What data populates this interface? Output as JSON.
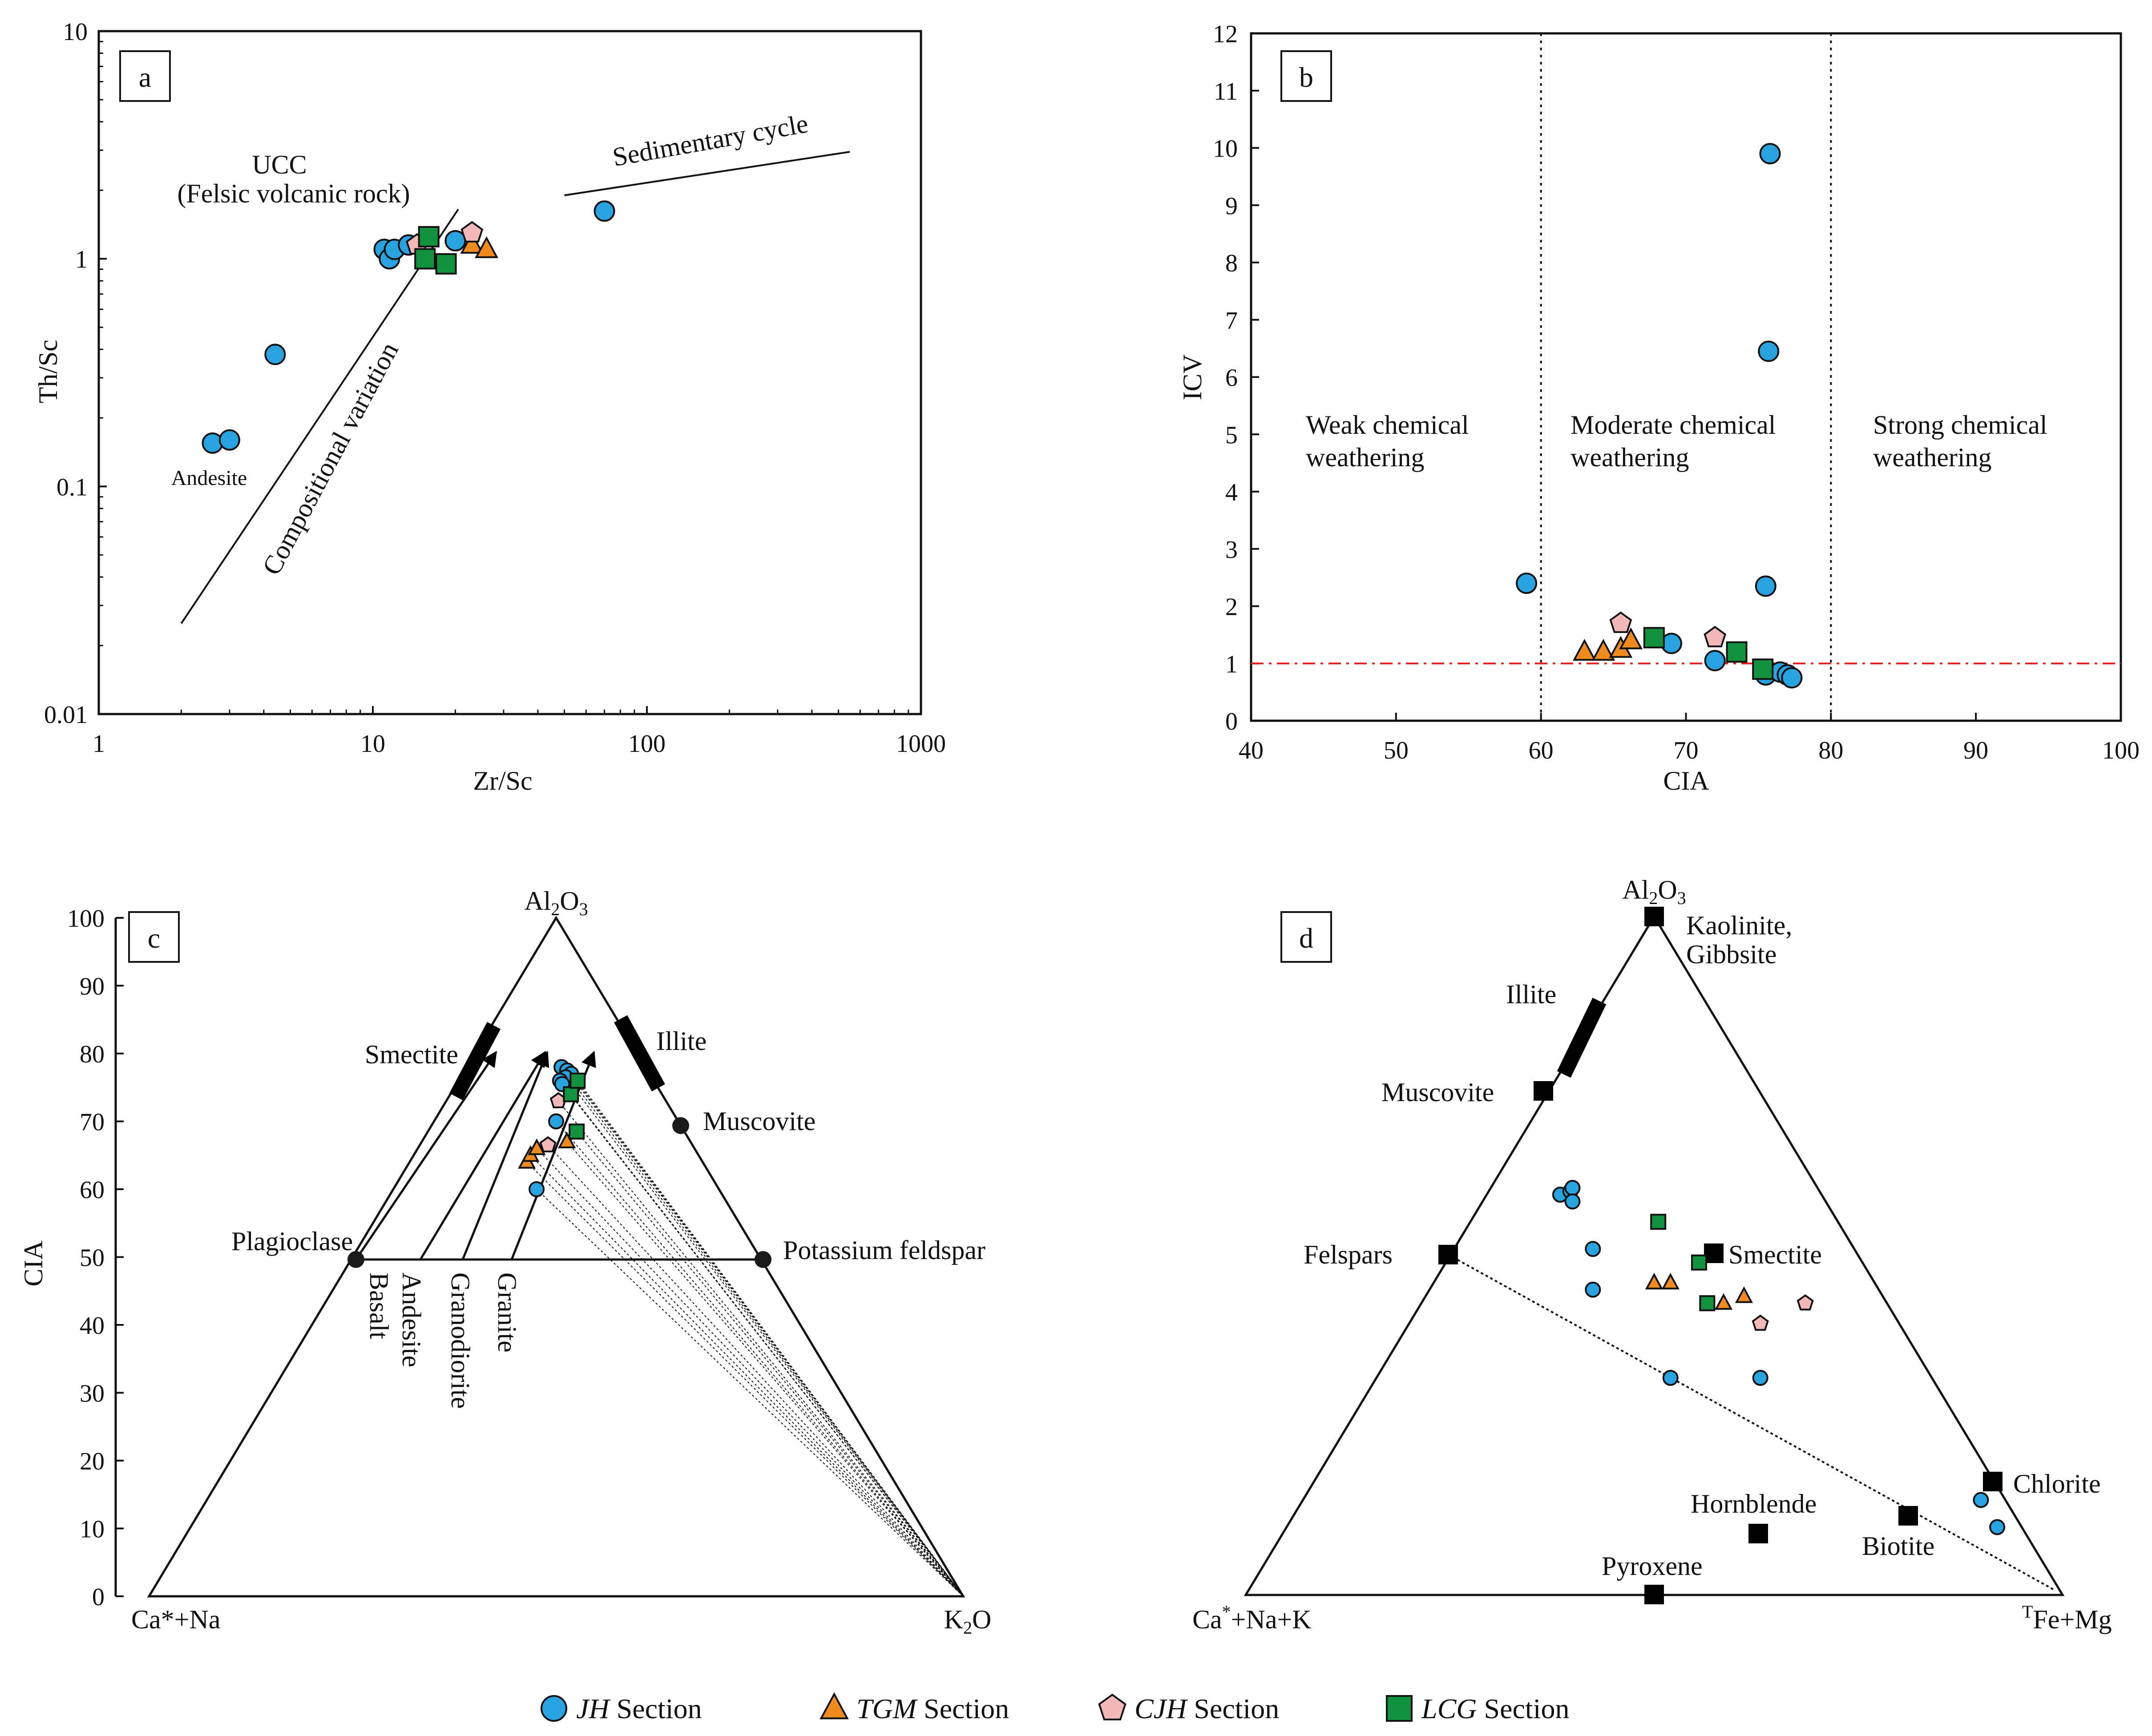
{
  "figure": {
    "legend": [
      {
        "italic": "JH",
        "rest": " Section",
        "marker": "circle",
        "color": "#29a3e0"
      },
      {
        "italic": "TGM",
        "rest": " Section",
        "marker": "triangle",
        "color": "#ef8b1e"
      },
      {
        "italic": "CJH",
        "rest": " Section",
        "marker": "pentagon",
        "color": "#f3b8b8"
      },
      {
        "italic": "LCG",
        "rest": " Section",
        "marker": "square",
        "color": "#12913f"
      }
    ]
  },
  "chart_data": [
    {
      "panel": "a",
      "type": "scatter",
      "xscale": "log",
      "yscale": "log",
      "xlim": [
        1,
        1000
      ],
      "ylim": [
        0.01,
        10
      ],
      "xlabel": "Zr/Sc",
      "ylabel": "Th/Sc",
      "xticks": [
        "1",
        "10",
        "100",
        "1000"
      ],
      "yticks": [
        "0.01",
        "0.1",
        "1",
        "10"
      ],
      "annotations": {
        "ucc_line1": "UCC",
        "ucc_line2": "(Felsic volcanic rock)",
        "sedimentary": "Sedimentary cycle",
        "compositional": "Compositional variation",
        "andesite": "Andesite"
      },
      "lines": [
        {
          "name": "compositional-variation",
          "x": [
            2.0,
            20.5
          ],
          "y": [
            0.025,
            1.65
          ]
        },
        {
          "name": "sedimentary-cycle",
          "x": [
            50,
            550
          ],
          "y": [
            1.9,
            2.95
          ]
        }
      ],
      "series": [
        {
          "name": "JH",
          "x": [
            2.6,
            3.0,
            4.4,
            11,
            11.5,
            12,
            13.5,
            20,
            70
          ],
          "y": [
            0.155,
            0.16,
            0.38,
            1.1,
            1.0,
            1.1,
            1.15,
            1.2,
            1.62
          ]
        },
        {
          "name": "TGM",
          "x": [
            23,
            26
          ],
          "y": [
            1.15,
            1.1
          ]
        },
        {
          "name": "CJH",
          "x": [
            14.5,
            23
          ],
          "y": [
            1.15,
            1.3
          ]
        },
        {
          "name": "LCG",
          "x": [
            15.5,
            16,
            18.5
          ],
          "y": [
            1.0,
            1.25,
            0.95
          ]
        }
      ]
    },
    {
      "panel": "b",
      "type": "scatter",
      "xlim": [
        40,
        100
      ],
      "ylim": [
        0,
        12
      ],
      "xlabel": "CIA",
      "ylabel": "ICV",
      "xticks": [
        "40",
        "50",
        "60",
        "70",
        "80",
        "90",
        "100"
      ],
      "yticks": [
        "0",
        "1",
        "2",
        "3",
        "4",
        "5",
        "6",
        "7",
        "8",
        "9",
        "10",
        "11",
        "12"
      ],
      "vlines": [
        60,
        80
      ],
      "hline": 1,
      "zones": {
        "weak1": "Weak chemical",
        "weak2": "weathering",
        "moderate1": "Moderate chemical",
        "moderate2": "weathering",
        "strong1": "Strong chemical",
        "strong2": "weathering"
      },
      "series": [
        {
          "name": "JH",
          "x": [
            59,
            69,
            72,
            75.5,
            75.7,
            75.8,
            75.5,
            76.5,
            77,
            77.3
          ],
          "y": [
            2.4,
            1.35,
            1.05,
            2.35,
            6.45,
            9.9,
            0.8,
            0.85,
            0.8,
            0.75
          ]
        },
        {
          "name": "TGM",
          "x": [
            63,
            64.3,
            65.5,
            66.2
          ],
          "y": [
            1.2,
            1.2,
            1.25,
            1.4
          ]
        },
        {
          "name": "CJH",
          "x": [
            65.5,
            72
          ],
          "y": [
            1.7,
            1.45
          ]
        },
        {
          "name": "LCG",
          "x": [
            67.8,
            73.5,
            75.3
          ],
          "y": [
            1.45,
            1.2,
            0.9
          ]
        }
      ]
    },
    {
      "panel": "c",
      "type": "ternary",
      "yaxis_label": "CIA",
      "ylim": [
        0,
        100
      ],
      "yticks": [
        "0",
        "10",
        "20",
        "30",
        "40",
        "50",
        "60",
        "70",
        "80",
        "90",
        "100"
      ],
      "apex_top": {
        "a": "Al",
        "b": "2",
        "c": "O",
        "d": "3"
      },
      "apex_left": "Ca*+Na",
      "apex_right": {
        "a": "K",
        "b": "2",
        "c": "O"
      },
      "minerals": {
        "plagioclase": "Plagioclase",
        "k_feldspar": "Potassium feldspar",
        "muscovite": "Muscovite",
        "smectite": "Smectite",
        "illite": "Illite"
      },
      "rocks": {
        "basalt": "Basalt",
        "andesite": "Andesite",
        "granodiorite": "Granodiorite",
        "granite": "Granite"
      },
      "series": [
        {
          "name": "JH",
          "cia": [
            78,
            77.5,
            77,
            76.5,
            76,
            75.5,
            70,
            60
          ],
          "xfrac": [
            0.53,
            0.56,
            0.58,
            0.55,
            0.52,
            0.53,
            0.5,
            0.44
          ]
        },
        {
          "name": "TGM",
          "cia": [
            64,
            65,
            66,
            67
          ],
          "xfrac": [
            0.4,
            0.41,
            0.43,
            0.54
          ]
        },
        {
          "name": "CJH",
          "cia": [
            66.5,
            73
          ],
          "xfrac": [
            0.47,
            0.51
          ]
        },
        {
          "name": "LCG",
          "cia": [
            74,
            76,
            68.5
          ],
          "xfrac": [
            0.57,
            0.61,
            0.58
          ]
        }
      ]
    },
    {
      "panel": "d",
      "type": "ternary",
      "apex_top": {
        "a": "Al",
        "b": "2",
        "c": "O",
        "d": "3"
      },
      "apex_left": {
        "a": "Ca",
        "b": "*",
        "c": "+Na+K"
      },
      "apex_right": {
        "a": "T",
        "b": "Fe+Mg"
      },
      "minerals": {
        "kaolinite1": "Kaolinite,",
        "kaolinite2": "Gibbsite",
        "illite": "Illite",
        "muscovite": "Muscovite",
        "felspars": "Felspars",
        "smectite": "Smectite",
        "chlorite": "Chlorite",
        "hornblende": "Hornblende",
        "biotite": "Biotite",
        "pyroxene": "Pyroxene"
      },
      "series": [
        {
          "name": "JH",
          "al": [
            0.59,
            0.595,
            0.6,
            0.58,
            0.51,
            0.45,
            0.32,
            0.32,
            0.14,
            0.1
          ],
          "fm": [
            0.09,
            0.1,
            0.1,
            0.11,
            0.17,
            0.2,
            0.36,
            0.47,
            0.83,
            0.87
          ]
        },
        {
          "name": "TGM",
          "al": [
            0.46,
            0.46,
            0.43,
            0.44
          ],
          "fm": [
            0.27,
            0.29,
            0.37,
            0.39
          ]
        },
        {
          "name": "CJH",
          "al": [
            0.4,
            0.43
          ],
          "fm": [
            0.43,
            0.47
          ]
        },
        {
          "name": "LCG",
          "al": [
            0.55,
            0.49,
            0.43
          ],
          "fm": [
            0.23,
            0.31,
            0.35
          ]
        }
      ]
    }
  ],
  "panel_labels": {
    "a": "a",
    "b": "b",
    "c": "c",
    "d": "d"
  }
}
